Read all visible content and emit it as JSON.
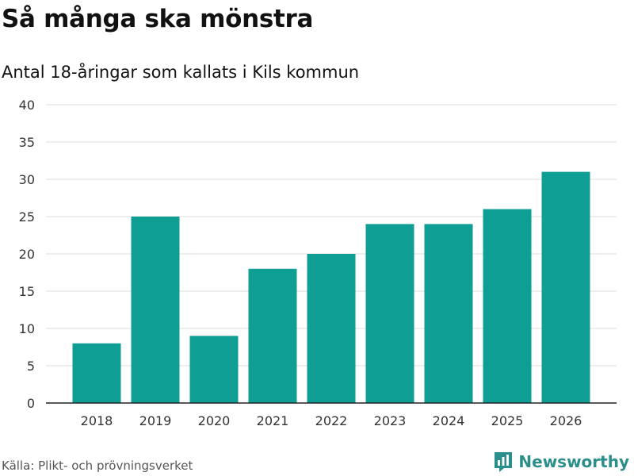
{
  "header": {
    "title": "Så många ska mönstra",
    "subtitle": "Antal 18-åringar som kallats i Kils kommun"
  },
  "footer": {
    "source": "Källa: Plikt- och prövningsverket",
    "brand": "Newsworthy"
  },
  "colors": {
    "bar": "#0e9e94",
    "grid": "#dddddd",
    "axis": "#222222",
    "brand": "#2a8f8a"
  },
  "chart_data": {
    "type": "bar",
    "title": "Så många ska mönstra",
    "subtitle": "Antal 18-åringar som kallats i Kils kommun",
    "categories": [
      "2018",
      "2019",
      "2020",
      "2021",
      "2022",
      "2023",
      "2024",
      "2025",
      "2026"
    ],
    "values": [
      8,
      25,
      9,
      18,
      20,
      24,
      24,
      26,
      31
    ],
    "xlabel": "",
    "ylabel": "",
    "ylim": [
      0,
      40
    ],
    "yticks": [
      0,
      5,
      10,
      15,
      20,
      25,
      30,
      35,
      40
    ],
    "grid": true
  }
}
